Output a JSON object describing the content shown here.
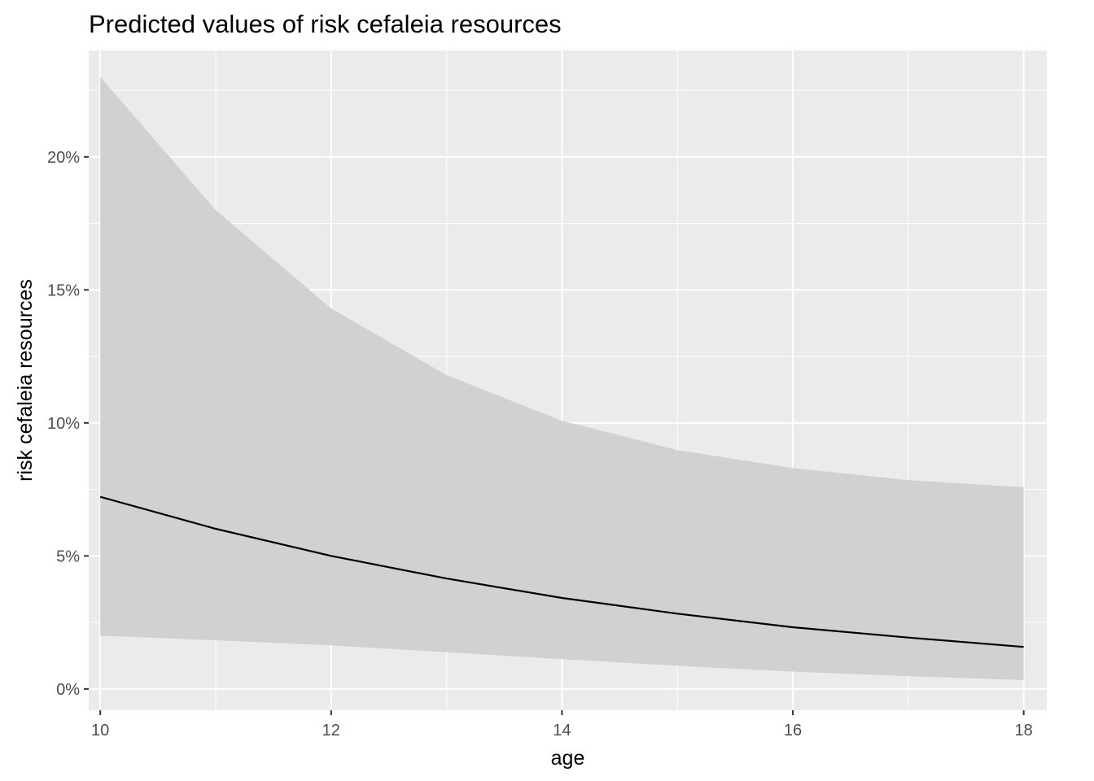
{
  "chart_data": {
    "type": "line",
    "title": "Predicted values of risk cefaleia resources",
    "xlabel": "age",
    "ylabel": "risk cefaleia resources",
    "x": [
      10,
      11,
      12,
      13,
      14,
      15,
      16,
      17,
      18
    ],
    "series": [
      {
        "values": [
          0.0722,
          0.0602,
          0.05,
          0.0415,
          0.0342,
          0.0283,
          0.0232,
          0.0193,
          0.0158
        ]
      }
    ],
    "confidence_band": {
      "lower": [
        0.02,
        0.0183,
        0.0164,
        0.0138,
        0.0112,
        0.0087,
        0.0065,
        0.0048,
        0.0033
      ],
      "upper": [
        0.23,
        0.18,
        0.143,
        0.118,
        0.1008,
        0.0898,
        0.083,
        0.0785,
        0.0758
      ]
    },
    "xlim": [
      9.9,
      18.2
    ],
    "ylim": [
      -0.008,
      0.24
    ],
    "x_ticks": [
      10,
      12,
      14,
      16,
      18
    ],
    "x_tick_labels": [
      "10",
      "12",
      "14",
      "16",
      "18"
    ],
    "y_ticks": [
      0,
      0.05,
      0.1,
      0.15,
      0.2
    ],
    "y_tick_labels": [
      "0%",
      "5%",
      "10%",
      "15%",
      "20%"
    ],
    "grid": true,
    "legend": "none",
    "colors": {
      "panel_bg": "#ebebeb",
      "grid_major": "#ffffff",
      "band": "#d1d1d1",
      "line": "#000000",
      "tick_text": "#4d4d4d"
    }
  }
}
